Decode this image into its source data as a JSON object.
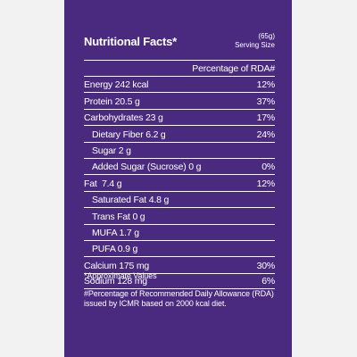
{
  "title": "Nutritional Facts*",
  "serving": {
    "amount": "(65g)",
    "label": "Serving Size"
  },
  "rda_header": "Percentage of RDA#",
  "rows": [
    {
      "label": "Energy 242 kcal",
      "value": "12%"
    },
    {
      "label": "Protein 20.5 g",
      "value": "37%"
    },
    {
      "label": "Carbohydrates 23 g",
      "value": "17%"
    },
    {
      "label": "Dietary Fiber 6.2 g",
      "value": "24%"
    },
    {
      "label": "Sugar 2 g",
      "value": ""
    },
    {
      "label": "Added Sugar (Sucrose) 0 g",
      "value": "0%"
    },
    {
      "label": "Fat  7.4 g",
      "value": "12%"
    },
    {
      "label": "Saturated Fat 4.8 g",
      "value": ""
    },
    {
      "label": "Trans Fat 0 g",
      "value": ""
    },
    {
      "label": "MUFA 1.7 g",
      "value": ""
    },
    {
      "label": "PUFA 0.9 g",
      "value": ""
    },
    {
      "label": "Calcium 175 mg",
      "value": "30%"
    },
    {
      "label": "Sodium 128 mg",
      "value": "6%"
    }
  ],
  "footnotes": {
    "approx": "*Approximate Values",
    "rda_note": "#Percentage of Recommended Daily Allowance (RDA) issued by ICMR based on 2000 kcal diet."
  },
  "colors": {
    "panel_background": "#4a2a7f",
    "page_background": "#f2f2f2",
    "text": "#ffffff"
  }
}
